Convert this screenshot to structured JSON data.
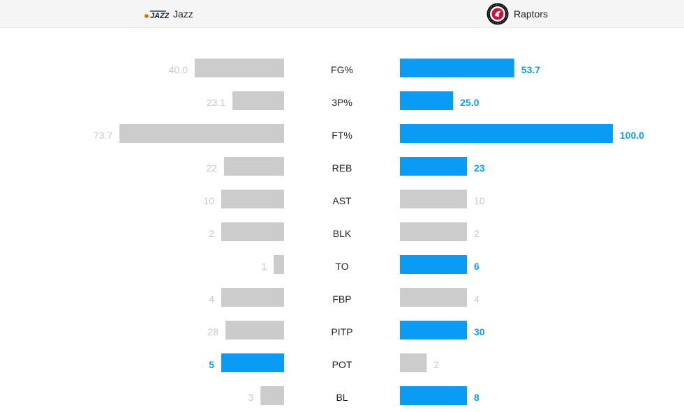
{
  "header": {
    "left_team": {
      "name": "Jazz",
      "logo_icon": "utah-jazz-logo-icon"
    },
    "right_team": {
      "name": "Raptors",
      "logo_icon": "toronto-raptors-logo-icon"
    }
  },
  "colors": {
    "leader": "#0a9cf5",
    "neutral": "#cccccc",
    "neutral_text": "#c8c8c8",
    "category_text": "#222222"
  },
  "chart_data": {
    "type": "bar",
    "orientation": "horizontal-butterfly",
    "categories": [
      "FG%",
      "3P%",
      "FT%",
      "REB",
      "AST",
      "BLK",
      "TO",
      "FBP",
      "PITP",
      "POT",
      "BL"
    ],
    "series": [
      {
        "name": "Jazz",
        "labels": [
          "40.0",
          "23.1",
          "73.7",
          "22",
          "10",
          "2",
          "1",
          "4",
          "28",
          "5",
          "3"
        ],
        "values": [
          40.0,
          23.1,
          73.7,
          22,
          10,
          2,
          1,
          4,
          28,
          5,
          3
        ],
        "highlight": [
          false,
          false,
          false,
          false,
          false,
          false,
          false,
          false,
          false,
          true,
          false
        ]
      },
      {
        "name": "Raptors",
        "labels": [
          "53.7",
          "25.0",
          "100.0",
          "23",
          "10",
          "2",
          "6",
          "4",
          "30",
          "2",
          "8"
        ],
        "values": [
          53.7,
          25.0,
          100.0,
          23,
          10,
          2,
          6,
          4,
          30,
          2,
          8
        ],
        "highlight": [
          true,
          true,
          true,
          true,
          false,
          false,
          true,
          false,
          true,
          false,
          true
        ]
      }
    ],
    "grid": false,
    "legend": "top"
  }
}
